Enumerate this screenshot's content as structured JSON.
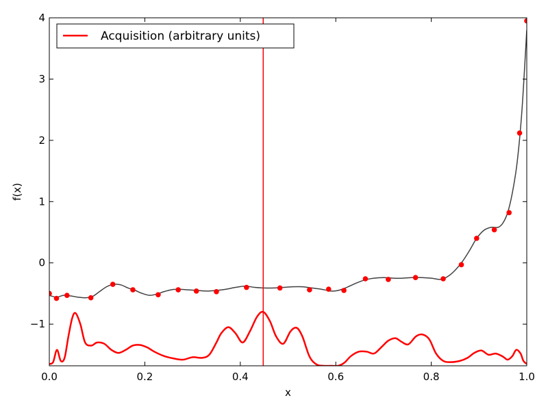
{
  "chart_data": {
    "type": "line",
    "xlabel": "x",
    "ylabel": "f(x)",
    "xlim": [
      0.0,
      1.0
    ],
    "ylim": [
      -1.68,
      4.0
    ],
    "xticks": [
      0.0,
      0.2,
      0.4,
      0.6,
      0.8,
      1.0
    ],
    "xtick_labels": [
      "0.0",
      "0.2",
      "0.4",
      "0.6",
      "0.8",
      "1.0"
    ],
    "yticks": [
      -1,
      0,
      1,
      2,
      3,
      4
    ],
    "ytick_labels": [
      "−1",
      "0",
      "1",
      "2",
      "3",
      "4"
    ],
    "grid": false,
    "legend": {
      "placement": "top-left",
      "entries": [
        "Acquisition (arbitrary units)"
      ]
    },
    "colors": {
      "acquisition": "#ff0000",
      "model": "#404040",
      "points": "#ff0000",
      "vline": "#ff0000"
    },
    "vline_x": 0.448,
    "series": [
      {
        "name": "Acquisition (arbitrary units)",
        "kind": "line",
        "x": [
          0.0,
          0.008,
          0.016,
          0.024,
          0.032,
          0.04,
          0.048,
          0.055,
          0.065,
          0.075,
          0.088,
          0.1,
          0.115,
          0.13,
          0.145,
          0.16,
          0.175,
          0.19,
          0.205,
          0.22,
          0.24,
          0.26,
          0.28,
          0.3,
          0.32,
          0.335,
          0.35,
          0.36,
          0.375,
          0.39,
          0.405,
          0.42,
          0.435,
          0.448,
          0.462,
          0.475,
          0.49,
          0.505,
          0.518,
          0.53,
          0.545,
          0.56,
          0.575,
          0.59,
          0.605,
          0.618,
          0.632,
          0.648,
          0.665,
          0.68,
          0.695,
          0.71,
          0.725,
          0.738,
          0.752,
          0.768,
          0.782,
          0.796,
          0.81,
          0.825,
          0.84,
          0.86,
          0.876,
          0.89,
          0.905,
          0.92,
          0.935,
          0.95,
          0.96,
          0.97,
          0.978,
          0.987,
          0.993,
          1.0
        ],
        "y": [
          -1.65,
          -1.62,
          -1.42,
          -1.6,
          -1.55,
          -1.2,
          -0.9,
          -0.82,
          -1.0,
          -1.3,
          -1.35,
          -1.3,
          -1.32,
          -1.42,
          -1.47,
          -1.42,
          -1.35,
          -1.34,
          -1.38,
          -1.45,
          -1.52,
          -1.56,
          -1.58,
          -1.54,
          -1.55,
          -1.5,
          -1.3,
          -1.15,
          -1.05,
          -1.15,
          -1.3,
          -1.12,
          -0.88,
          -0.8,
          -0.95,
          -1.2,
          -1.32,
          -1.12,
          -1.06,
          -1.2,
          -1.53,
          -1.66,
          -1.68,
          -1.68,
          -1.68,
          -1.63,
          -1.52,
          -1.45,
          -1.45,
          -1.48,
          -1.38,
          -1.27,
          -1.23,
          -1.29,
          -1.33,
          -1.2,
          -1.17,
          -1.25,
          -1.48,
          -1.6,
          -1.62,
          -1.6,
          -1.55,
          -1.47,
          -1.43,
          -1.5,
          -1.48,
          -1.53,
          -1.58,
          -1.52,
          -1.42,
          -1.48,
          -1.6,
          -1.65
        ]
      },
      {
        "name": "",
        "kind": "model",
        "x": [
          0.0,
          0.015,
          0.03,
          0.045,
          0.06,
          0.075,
          0.09,
          0.105,
          0.12,
          0.135,
          0.15,
          0.165,
          0.18,
          0.195,
          0.21,
          0.225,
          0.24,
          0.255,
          0.27,
          0.29,
          0.31,
          0.33,
          0.35,
          0.37,
          0.39,
          0.41,
          0.43,
          0.45,
          0.47,
          0.49,
          0.51,
          0.53,
          0.55,
          0.57,
          0.59,
          0.605,
          0.62,
          0.64,
          0.66,
          0.68,
          0.7,
          0.72,
          0.74,
          0.76,
          0.78,
          0.8,
          0.82,
          0.835,
          0.85,
          0.865,
          0.88,
          0.895,
          0.91,
          0.925,
          0.94,
          0.95,
          0.96,
          0.97,
          0.98,
          0.99,
          1.0
        ],
        "y": [
          -0.53,
          -0.56,
          -0.53,
          -0.54,
          -0.56,
          -0.57,
          -0.55,
          -0.47,
          -0.39,
          -0.35,
          -0.36,
          -0.41,
          -0.45,
          -0.5,
          -0.53,
          -0.51,
          -0.47,
          -0.44,
          -0.43,
          -0.44,
          -0.45,
          -0.46,
          -0.45,
          -0.43,
          -0.4,
          -0.38,
          -0.4,
          -0.41,
          -0.41,
          -0.4,
          -0.39,
          -0.39,
          -0.41,
          -0.43,
          -0.46,
          -0.45,
          -0.41,
          -0.34,
          -0.28,
          -0.25,
          -0.24,
          -0.25,
          -0.25,
          -0.24,
          -0.24,
          -0.25,
          -0.27,
          -0.22,
          -0.12,
          0.02,
          0.2,
          0.4,
          0.53,
          0.58,
          0.58,
          0.65,
          0.82,
          1.15,
          1.65,
          2.5,
          3.8
        ]
      },
      {
        "name": "",
        "kind": "points",
        "x": [
          0.0,
          0.015,
          0.037,
          0.087,
          0.133,
          0.175,
          0.228,
          0.27,
          0.308,
          0.35,
          0.413,
          0.483,
          0.545,
          0.585,
          0.617,
          0.662,
          0.71,
          0.767,
          0.825,
          0.863,
          0.895,
          0.932,
          0.963,
          0.985,
          1.0
        ],
        "y": [
          -0.5,
          -0.58,
          -0.53,
          -0.57,
          -0.35,
          -0.44,
          -0.52,
          -0.44,
          -0.46,
          -0.47,
          -0.4,
          -0.41,
          -0.44,
          -0.43,
          -0.45,
          -0.26,
          -0.27,
          -0.24,
          -0.26,
          -0.03,
          0.4,
          0.54,
          0.82,
          2.12,
          3.95
        ]
      }
    ]
  }
}
